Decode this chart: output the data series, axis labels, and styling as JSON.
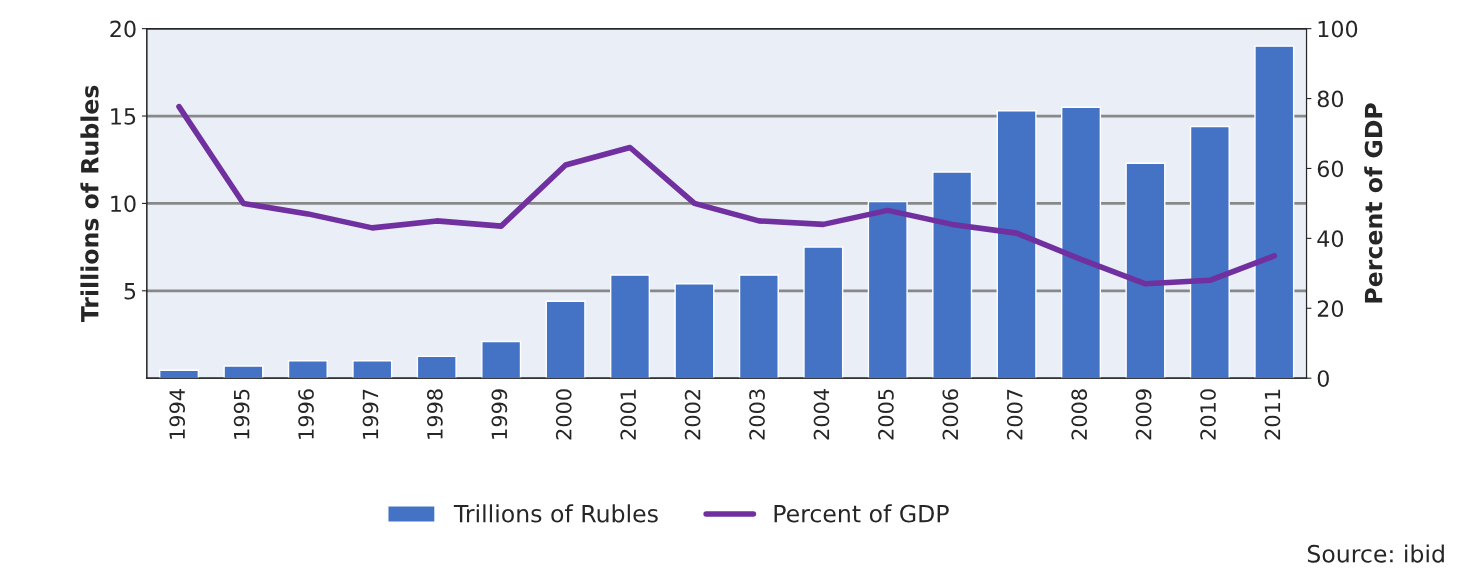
{
  "chart_data": {
    "type": "bar",
    "categories": [
      "1994",
      "1995",
      "1996",
      "1997",
      "1998",
      "1999",
      "2000",
      "2001",
      "2002",
      "2003",
      "2004",
      "2005",
      "2006",
      "2007",
      "2008",
      "2009",
      "2010",
      "2011"
    ],
    "series": [
      {
        "name": "Trillions of Rubles",
        "color": "#4472c4",
        "values": [
          0.45,
          0.7,
          1.0,
          1.0,
          1.25,
          2.1,
          4.4,
          5.9,
          5.4,
          5.9,
          7.5,
          10.1,
          11.8,
          15.3,
          15.5,
          12.3,
          14.4,
          19.0
        ]
      },
      {
        "name": "Percent of GDP",
        "type": "line",
        "axis": "y2",
        "color": "#7030a0",
        "values": [
          77.7,
          50,
          47,
          43,
          45,
          43.5,
          61,
          66,
          50,
          45,
          44,
          48,
          44,
          41.5,
          34,
          27,
          28,
          35
        ]
      }
    ],
    "ylabel": "Trillions of Rubles",
    "y2label": "Percent of GDP",
    "ylim": [
      0,
      20
    ],
    "yticks": [
      5,
      10,
      15,
      20
    ],
    "y2lim": [
      0,
      100
    ],
    "y2ticks": [
      0,
      20,
      40,
      60,
      80,
      100
    ],
    "grid": "y",
    "legend": "bottom",
    "annotations": [
      "Source: ibid"
    ]
  }
}
